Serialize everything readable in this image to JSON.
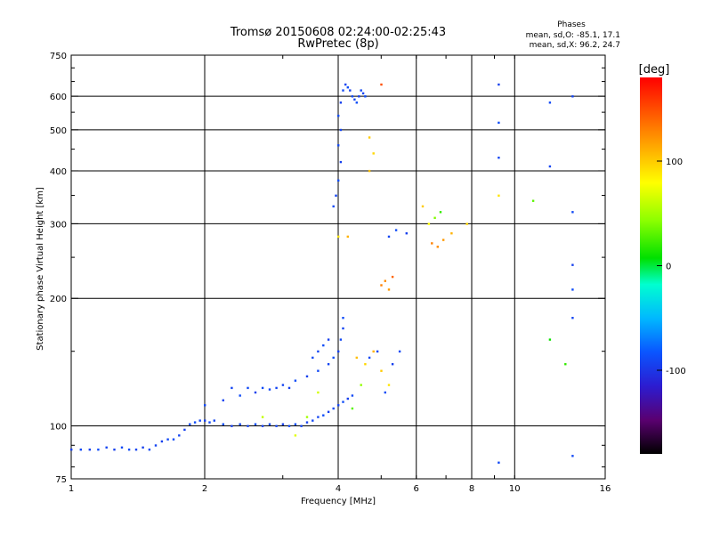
{
  "chart_data": {
    "type": "scatter",
    "title": "Tromsø 20150608 02:24:00-02:25:43",
    "subtitle": "RwPretec (8p)",
    "xlabel": "Frequency [MHz]",
    "ylabel": "Stationary phase Virtual Height [km]",
    "x_scale": "log",
    "y_scale": "log",
    "xlim": [
      1,
      16
    ],
    "ylim": [
      75,
      750
    ],
    "x_ticks": [
      1,
      2,
      4,
      6,
      8,
      10,
      16
    ],
    "y_ticks": [
      75,
      100,
      200,
      300,
      400,
      500,
      600,
      750
    ],
    "grid": true,
    "stats": {
      "header": "Phases",
      "line1": "mean, sd,O: -85.1, 17.1",
      "line2": "mean, sd,X:  96.2, 24.7"
    },
    "colorbar": {
      "label": "[deg]",
      "range": [
        -180,
        180
      ],
      "ticks": [
        100,
        0,
        -100
      ]
    },
    "series": [
      {
        "points": [
          [
            1.0,
            88,
            -95
          ],
          [
            1.05,
            88,
            -90
          ],
          [
            1.1,
            88,
            -95
          ],
          [
            1.15,
            88,
            -88
          ],
          [
            1.2,
            89,
            -92
          ],
          [
            1.25,
            88,
            -95
          ],
          [
            1.3,
            89,
            -90
          ],
          [
            1.35,
            88,
            -88
          ],
          [
            1.4,
            88,
            -92
          ],
          [
            1.45,
            89,
            -95
          ],
          [
            1.5,
            88,
            -90
          ],
          [
            1.55,
            90,
            -92
          ],
          [
            1.6,
            92,
            -95
          ],
          [
            1.65,
            93,
            -90
          ],
          [
            1.7,
            93,
            -88
          ],
          [
            1.75,
            95,
            -92
          ],
          [
            1.8,
            98,
            -95
          ],
          [
            1.85,
            101,
            -90
          ],
          [
            1.9,
            102,
            -88
          ],
          [
            1.95,
            103,
            -92
          ],
          [
            2.0,
            103,
            -95
          ],
          [
            2.05,
            102,
            -90
          ],
          [
            2.1,
            103,
            -92
          ],
          [
            2.2,
            101,
            -88
          ],
          [
            2.3,
            100,
            -95
          ],
          [
            2.4,
            101,
            -90
          ],
          [
            2.5,
            100,
            -92
          ],
          [
            2.6,
            101,
            -88
          ],
          [
            2.7,
            100,
            -95
          ],
          [
            2.8,
            101,
            -90
          ],
          [
            2.9,
            100,
            -92
          ],
          [
            3.0,
            101,
            -95
          ],
          [
            3.1,
            100,
            -90
          ],
          [
            3.2,
            101,
            -88
          ],
          [
            3.3,
            100,
            -92
          ],
          [
            3.4,
            102,
            -95
          ],
          [
            3.5,
            103,
            -90
          ],
          [
            3.6,
            105,
            -92
          ],
          [
            3.7,
            106,
            -88
          ],
          [
            3.8,
            108,
            -95
          ],
          [
            3.9,
            110,
            -90
          ],
          [
            4.0,
            112,
            -92
          ],
          [
            4.1,
            114,
            -88
          ],
          [
            4.2,
            116,
            -95
          ],
          [
            4.3,
            118,
            -90
          ],
          [
            2.0,
            112,
            -90
          ],
          [
            2.2,
            115,
            -92
          ],
          [
            2.4,
            118,
            -88
          ],
          [
            2.6,
            120,
            -95
          ],
          [
            2.8,
            122,
            -90
          ],
          [
            3.0,
            125,
            -92
          ],
          [
            3.2,
            128,
            -88
          ],
          [
            3.4,
            131,
            -95
          ],
          [
            3.6,
            135,
            -90
          ],
          [
            3.8,
            140,
            -92
          ],
          [
            3.9,
            145,
            -88
          ],
          [
            4.0,
            150,
            -95
          ],
          [
            4.05,
            160,
            -90
          ],
          [
            4.1,
            170,
            -92
          ],
          [
            4.1,
            180,
            -88
          ],
          [
            2.3,
            123,
            -92
          ],
          [
            2.5,
            123,
            -90
          ],
          [
            2.7,
            123,
            -88
          ],
          [
            2.9,
            123,
            -92
          ],
          [
            3.1,
            123,
            -95
          ],
          [
            3.5,
            145,
            -90
          ],
          [
            3.6,
            150,
            -92
          ],
          [
            3.7,
            155,
            -88
          ],
          [
            3.8,
            160,
            -95
          ],
          [
            3.9,
            330,
            -90
          ],
          [
            3.95,
            350,
            -92
          ],
          [
            4.0,
            380,
            -88
          ],
          [
            4.05,
            420,
            -95
          ],
          [
            4.0,
            460,
            -90
          ],
          [
            4.05,
            500,
            -92
          ],
          [
            4.0,
            540,
            -88
          ],
          [
            4.05,
            580,
            -95
          ],
          [
            4.1,
            620,
            -90
          ],
          [
            4.15,
            640,
            -92
          ],
          [
            4.2,
            630,
            -88
          ],
          [
            4.25,
            620,
            -95
          ],
          [
            4.3,
            600,
            -90
          ],
          [
            4.35,
            590,
            -92
          ],
          [
            4.4,
            580,
            -88
          ],
          [
            4.45,
            600,
            -95
          ],
          [
            4.5,
            620,
            -90
          ],
          [
            4.55,
            610,
            -92
          ],
          [
            4.6,
            600,
            -88
          ],
          [
            4.7,
            145,
            -90
          ],
          [
            4.9,
            150,
            -92
          ],
          [
            5.1,
            120,
            -88
          ],
          [
            5.3,
            140,
            -95
          ],
          [
            5.5,
            150,
            -90
          ],
          [
            5.2,
            280,
            -92
          ],
          [
            5.4,
            290,
            -88
          ],
          [
            5.7,
            285,
            -95
          ],
          [
            9.2,
            82,
            -90
          ],
          [
            9.2,
            430,
            -92
          ],
          [
            9.2,
            520,
            -88
          ],
          [
            9.2,
            640,
            -95
          ],
          [
            13.5,
            85,
            -90
          ],
          [
            13.5,
            180,
            -92
          ],
          [
            13.5,
            210,
            -88
          ],
          [
            13.5,
            240,
            -95
          ],
          [
            13.5,
            320,
            -90
          ],
          [
            13.5,
            600,
            -92
          ],
          [
            12.0,
            580,
            -90
          ],
          [
            12.0,
            410,
            -92
          ],
          [
            3.2,
            95,
            70
          ],
          [
            3.6,
            120,
            65
          ],
          [
            4.4,
            145,
            105
          ],
          [
            4.6,
            140,
            95
          ],
          [
            4.8,
            150,
            110
          ],
          [
            5.0,
            135,
            100
          ],
          [
            5.2,
            125,
            90
          ],
          [
            4.7,
            480,
            100
          ],
          [
            4.8,
            440,
            95
          ],
          [
            4.7,
            400,
            105
          ],
          [
            5.0,
            215,
            130
          ],
          [
            5.1,
            220,
            125
          ],
          [
            5.2,
            210,
            120
          ],
          [
            5.3,
            225,
            140
          ],
          [
            6.5,
            270,
            130
          ],
          [
            6.7,
            265,
            125
          ],
          [
            6.9,
            275,
            120
          ],
          [
            7.2,
            285,
            110
          ],
          [
            7.8,
            300,
            95
          ],
          [
            6.2,
            330,
            100
          ],
          [
            6.4,
            300,
            80
          ],
          [
            6.6,
            310,
            40
          ],
          [
            6.8,
            320,
            20
          ],
          [
            9.2,
            350,
            90
          ],
          [
            11.0,
            340,
            30
          ],
          [
            13.0,
            140,
            20
          ],
          [
            12.0,
            160,
            10
          ],
          [
            4.5,
            125,
            45
          ],
          [
            4.3,
            110,
            30
          ],
          [
            3.4,
            105,
            50
          ],
          [
            2.7,
            105,
            60
          ],
          [
            5.0,
            640,
            150
          ],
          [
            4.0,
            280,
            90
          ],
          [
            4.2,
            280,
            110
          ]
        ]
      }
    ]
  }
}
